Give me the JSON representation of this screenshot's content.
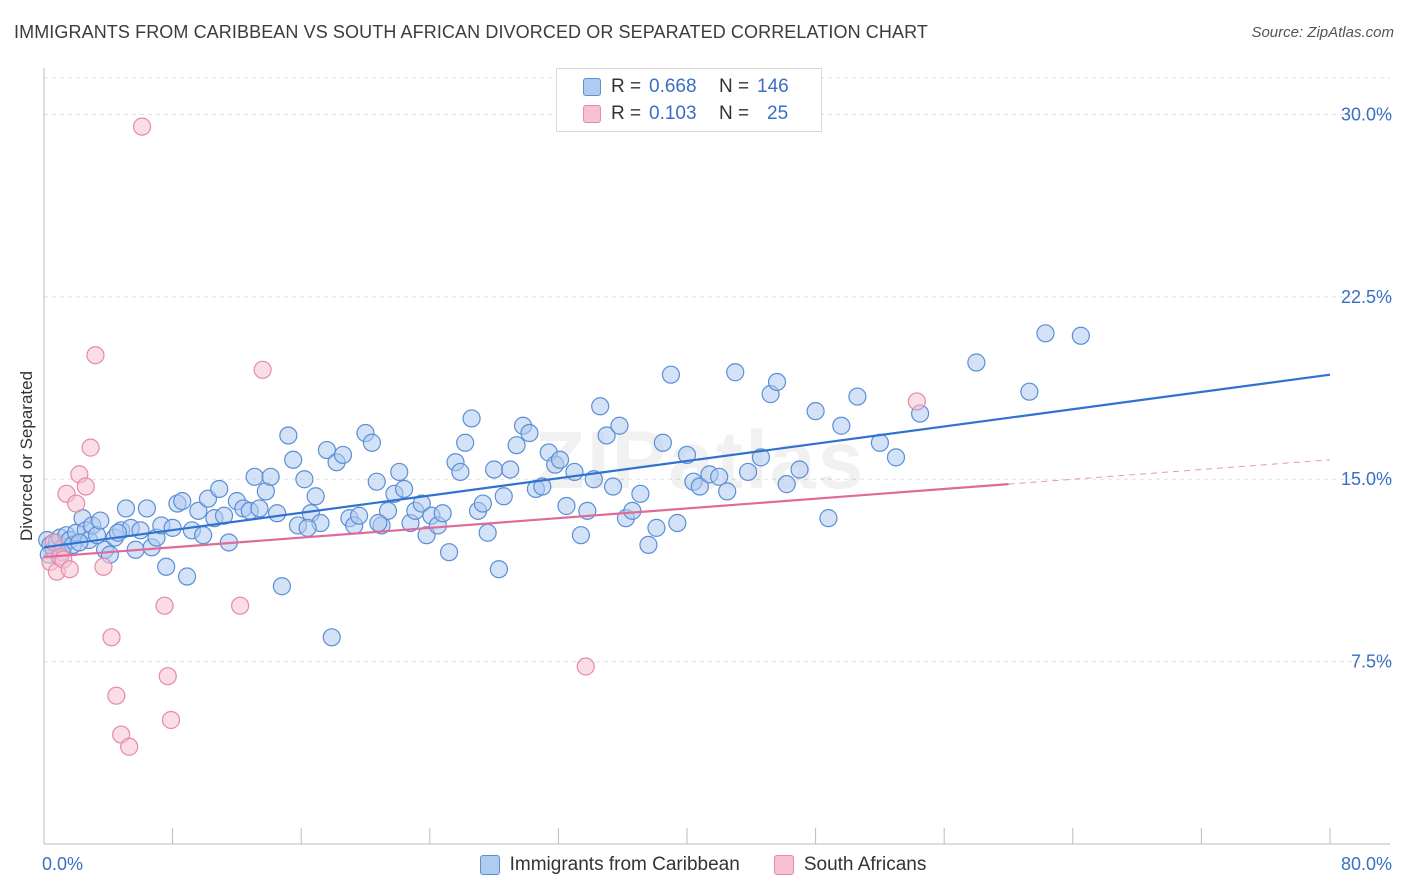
{
  "title": "IMMIGRANTS FROM CARIBBEAN VS SOUTH AFRICAN DIVORCED OR SEPARATED CORRELATION CHART",
  "source": "Source: ZipAtlas.com",
  "watermark": "ZIPatlas",
  "legend": {
    "rows": [
      {
        "r_label": "R =",
        "r_value": "0.668",
        "n_label": "N =",
        "n_value": "146"
      },
      {
        "r_label": "R =",
        "r_value": "0.103",
        "n_label": "N =",
        "n_value": "25"
      }
    ]
  },
  "colors": {
    "blue_fill": "#aecbf0",
    "blue_stroke": "#5a8fd6",
    "blue_line": "#2f72d0",
    "pink_fill": "#f7c1d2",
    "pink_stroke": "#e58aa8",
    "pink_line": "#e06b98",
    "axis_text": "#3a6fc4",
    "grid": "#e0e0e0"
  },
  "chart_data": {
    "type": "scatter",
    "title": "IMMIGRANTS FROM CARIBBEAN VS SOUTH AFRICAN DIVORCED OR SEPARATED CORRELATION CHART",
    "xlabel": "",
    "ylabel": "Divorced or Separated",
    "xlim": [
      0,
      80
    ],
    "ylim": [
      0,
      31.5
    ],
    "x_tick_labels": [
      "0.0%",
      "80.0%"
    ],
    "y_ticks": [
      7.5,
      15.0,
      22.5,
      30.0
    ],
    "y_tick_labels": [
      "7.5%",
      "15.0%",
      "22.5%",
      "30.0%"
    ],
    "grid": true,
    "legend_position": "top-center",
    "series": [
      {
        "name": "Immigrants from Caribbean",
        "color": "#aecbf0",
        "points": [
          [
            0.2,
            12.5
          ],
          [
            0.4,
            12.3
          ],
          [
            0.6,
            12.1
          ],
          [
            0.8,
            12.4
          ],
          [
            1.0,
            12.6
          ],
          [
            1.2,
            12.2
          ],
          [
            1.4,
            12.7
          ],
          [
            1.6,
            12.5
          ],
          [
            1.8,
            12.3
          ],
          [
            2.0,
            12.8
          ],
          [
            2.4,
            13.4
          ],
          [
            2.6,
            12.9
          ],
          [
            2.8,
            12.5
          ],
          [
            3.0,
            13.1
          ],
          [
            3.3,
            12.7
          ],
          [
            3.5,
            13.3
          ],
          [
            3.8,
            12.1
          ],
          [
            4.1,
            11.9
          ],
          [
            4.4,
            12.6
          ],
          [
            4.8,
            12.9
          ],
          [
            5.1,
            13.8
          ],
          [
            5.4,
            13.0
          ],
          [
            5.7,
            12.1
          ],
          [
            6.0,
            12.9
          ],
          [
            6.4,
            13.8
          ],
          [
            6.7,
            12.2
          ],
          [
            7.0,
            12.6
          ],
          [
            7.3,
            13.1
          ],
          [
            7.6,
            11.4
          ],
          [
            8.0,
            13.0
          ],
          [
            8.3,
            14.0
          ],
          [
            8.6,
            14.1
          ],
          [
            8.9,
            11.0
          ],
          [
            9.2,
            12.9
          ],
          [
            9.6,
            13.7
          ],
          [
            9.9,
            12.7
          ],
          [
            10.2,
            14.2
          ],
          [
            10.6,
            13.4
          ],
          [
            10.9,
            14.6
          ],
          [
            11.2,
            13.5
          ],
          [
            11.5,
            12.4
          ],
          [
            12.0,
            14.1
          ],
          [
            12.4,
            13.8
          ],
          [
            12.8,
            13.7
          ],
          [
            13.1,
            15.1
          ],
          [
            13.4,
            13.8
          ],
          [
            13.8,
            14.5
          ],
          [
            14.1,
            15.1
          ],
          [
            14.5,
            13.6
          ],
          [
            14.8,
            10.6
          ],
          [
            15.2,
            16.8
          ],
          [
            15.5,
            15.8
          ],
          [
            15.8,
            13.1
          ],
          [
            16.2,
            15.0
          ],
          [
            16.6,
            13.6
          ],
          [
            16.9,
            14.3
          ],
          [
            17.2,
            13.2
          ],
          [
            17.6,
            16.2
          ],
          [
            17.9,
            8.5
          ],
          [
            18.2,
            15.7
          ],
          [
            18.6,
            16.0
          ],
          [
            19.0,
            13.4
          ],
          [
            19.3,
            13.1
          ],
          [
            19.6,
            13.5
          ],
          [
            20.0,
            16.9
          ],
          [
            20.4,
            16.5
          ],
          [
            20.7,
            14.9
          ],
          [
            21.0,
            13.1
          ],
          [
            21.4,
            13.7
          ],
          [
            21.8,
            14.4
          ],
          [
            22.1,
            15.3
          ],
          [
            22.4,
            14.6
          ],
          [
            22.8,
            13.2
          ],
          [
            23.1,
            13.7
          ],
          [
            23.5,
            14.0
          ],
          [
            23.8,
            12.7
          ],
          [
            24.1,
            13.5
          ],
          [
            24.5,
            13.1
          ],
          [
            24.8,
            13.6
          ],
          [
            25.2,
            12.0
          ],
          [
            25.6,
            15.7
          ],
          [
            25.9,
            15.3
          ],
          [
            26.2,
            16.5
          ],
          [
            26.6,
            17.5
          ],
          [
            27.0,
            13.7
          ],
          [
            27.3,
            14.0
          ],
          [
            27.6,
            12.8
          ],
          [
            28.0,
            15.4
          ],
          [
            28.3,
            11.3
          ],
          [
            28.6,
            14.3
          ],
          [
            29.0,
            15.4
          ],
          [
            29.4,
            16.4
          ],
          [
            29.8,
            17.2
          ],
          [
            30.2,
            16.9
          ],
          [
            30.6,
            14.6
          ],
          [
            31.0,
            14.7
          ],
          [
            31.4,
            16.1
          ],
          [
            31.8,
            15.6
          ],
          [
            32.1,
            15.8
          ],
          [
            32.5,
            13.9
          ],
          [
            33.0,
            15.3
          ],
          [
            33.4,
            12.7
          ],
          [
            33.8,
            13.7
          ],
          [
            34.2,
            15.0
          ],
          [
            34.6,
            18.0
          ],
          [
            35.0,
            16.8
          ],
          [
            35.4,
            14.7
          ],
          [
            35.8,
            17.2
          ],
          [
            36.2,
            13.4
          ],
          [
            36.6,
            13.7
          ],
          [
            37.1,
            14.4
          ],
          [
            37.6,
            12.3
          ],
          [
            38.1,
            13.0
          ],
          [
            38.5,
            16.5
          ],
          [
            39.0,
            19.3
          ],
          [
            39.4,
            13.2
          ],
          [
            40.0,
            16.0
          ],
          [
            40.4,
            14.9
          ],
          [
            40.8,
            14.7
          ],
          [
            41.4,
            15.2
          ],
          [
            42.0,
            15.1
          ],
          [
            42.5,
            14.5
          ],
          [
            43.0,
            19.4
          ],
          [
            43.8,
            15.3
          ],
          [
            44.6,
            15.9
          ],
          [
            45.2,
            18.5
          ],
          [
            45.6,
            19.0
          ],
          [
            46.2,
            14.8
          ],
          [
            47.0,
            15.4
          ],
          [
            48.0,
            17.8
          ],
          [
            48.8,
            13.4
          ],
          [
            49.6,
            17.2
          ],
          [
            50.6,
            18.4
          ],
          [
            52.0,
            16.5
          ],
          [
            53.0,
            15.9
          ],
          [
            54.5,
            17.7
          ],
          [
            58.0,
            19.8
          ],
          [
            61.3,
            18.6
          ],
          [
            62.3,
            21.0
          ],
          [
            64.5,
            20.9
          ],
          [
            1.1,
            12.0
          ],
          [
            0.3,
            11.9
          ],
          [
            2.2,
            12.4
          ],
          [
            4.6,
            12.8
          ],
          [
            16.4,
            13.0
          ],
          [
            20.8,
            13.2
          ]
        ]
      },
      {
        "name": "South Africans",
        "color": "#f7c1d2",
        "points": [
          [
            0.4,
            11.6
          ],
          [
            0.6,
            12.4
          ],
          [
            0.8,
            11.2
          ],
          [
            1.0,
            11.8
          ],
          [
            1.2,
            11.7
          ],
          [
            1.4,
            14.4
          ],
          [
            1.6,
            11.3
          ],
          [
            2.0,
            14.0
          ],
          [
            2.2,
            15.2
          ],
          [
            2.6,
            14.7
          ],
          [
            2.9,
            16.3
          ],
          [
            3.2,
            20.1
          ],
          [
            3.7,
            11.4
          ],
          [
            4.2,
            8.5
          ],
          [
            4.8,
            4.5
          ],
          [
            5.3,
            4.0
          ],
          [
            6.1,
            29.5
          ],
          [
            7.5,
            9.8
          ],
          [
            7.7,
            6.9
          ],
          [
            7.9,
            5.1
          ],
          [
            4.5,
            6.1
          ],
          [
            12.2,
            9.8
          ],
          [
            13.6,
            19.5
          ],
          [
            33.7,
            7.3
          ],
          [
            54.3,
            18.2
          ]
        ]
      }
    ],
    "trend_lines": [
      {
        "series": "Immigrants from Caribbean",
        "x": [
          0,
          80
        ],
        "y": [
          12.2,
          19.3
        ]
      },
      {
        "series": "South Africans",
        "x": [
          0,
          60
        ],
        "y": [
          11.8,
          14.8
        ],
        "dashed_extension_x": [
          60,
          80
        ],
        "dashed_extension_y": [
          14.8,
          15.8
        ]
      }
    ]
  },
  "bottom_legend": {
    "items": [
      {
        "label": "Immigrants from Caribbean"
      },
      {
        "label": "South Africans"
      }
    ]
  }
}
